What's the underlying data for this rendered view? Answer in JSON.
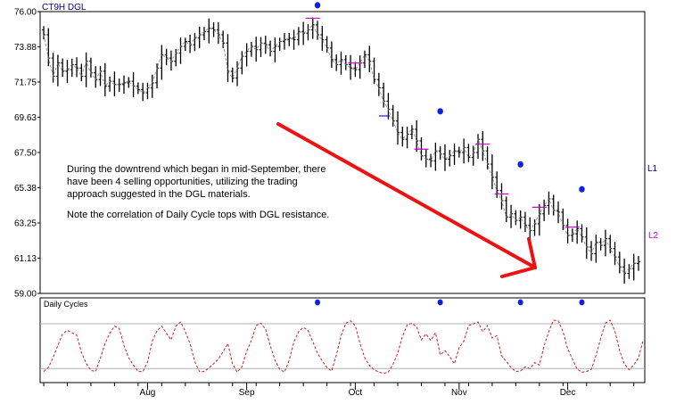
{
  "chart_data": [
    {
      "type": "bar",
      "style": "ohlc",
      "title": "CT9H DGL",
      "ylim": [
        59.0,
        76.0
      ],
      "yticks": [
        "76.00",
        "73.88",
        "71.75",
        "69.63",
        "67.50",
        "65.38",
        "63.25",
        "61.13",
        "59.00"
      ],
      "xlabels": [
        "Aug",
        "Sep",
        "Oct",
        "Nov",
        "Dec"
      ],
      "side_labels": {
        "l1": "L1",
        "l2": "L2"
      },
      "annotation": {
        "paragraph1": "During the downtrend which began in mid-September, there have been 4 selling opportunities, utilizing the trading approach suggested in the DGL materials.",
        "paragraph2": "Note the correlation of Daily Cycle tops with DGL resistance."
      },
      "colors": {
        "bars": "#000000",
        "markers": "#1020e0",
        "resistance": "#cc00cc",
        "arrow": "#ee1111",
        "axis_text": "#000080"
      },
      "series": [
        {
          "values": [
            74.6,
            73.2,
            72.1,
            72.9,
            72.4,
            72.5,
            72.8,
            72.6,
            72.1,
            73.0,
            72.3,
            71.9,
            72.4,
            71.5,
            71.8,
            71.6,
            71.6,
            71.7,
            71.8,
            71.5,
            71.3,
            71.1,
            71.4,
            71.7,
            72.6,
            73.4,
            73.2,
            73.0,
            73.5,
            73.9,
            74.2,
            74.0,
            74.4,
            74.6,
            74.8,
            75.0,
            74.9,
            74.6,
            74.1,
            72.4,
            72.0,
            72.6,
            73.3,
            73.6,
            73.9,
            73.7,
            74.1,
            74.0,
            73.6,
            73.9,
            74.2,
            74.3,
            74.4,
            74.3,
            74.8,
            74.7,
            74.9,
            75.2,
            74.6,
            74.3,
            73.8,
            73.1,
            72.8,
            73.1,
            72.8,
            72.6,
            72.5,
            72.9,
            73.4,
            73.0,
            71.9,
            71.4,
            70.6,
            70.1,
            69.4,
            68.7,
            68.3,
            68.6,
            68.9,
            68.2,
            67.3,
            67.1,
            67.0,
            67.6,
            67.4,
            67.1,
            67.3,
            67.6,
            67.5,
            67.8,
            67.2,
            67.5,
            68.3,
            67.6,
            66.8,
            66.0,
            65.2,
            64.6,
            63.6,
            63.8,
            63.4,
            63.6,
            63.1,
            62.8,
            63.2,
            63.8,
            64.3,
            64.7,
            64.0,
            63.9,
            63.1,
            62.5,
            62.6,
            62.9,
            62.4,
            61.8,
            61.4,
            62.1,
            61.9,
            62.3,
            61.7,
            61.2,
            60.6,
            60.2,
            60.5,
            60.8,
            60.9
          ]
        }
      ],
      "markers_top": [
        75.2,
        68.8,
        65.6,
        64.1
      ],
      "cycle_panel": {
        "label": "Daily Cycles",
        "upper_level": 0.85,
        "lower_level": 0.1,
        "values": [
          0.05,
          0.12,
          0.29,
          0.49,
          0.68,
          0.74,
          0.7,
          0.66,
          0.37,
          0.19,
          0.07,
          0.05,
          0.27,
          0.52,
          0.69,
          0.81,
          0.77,
          0.49,
          0.28,
          0.16,
          0.05,
          0.05,
          0.21,
          0.56,
          0.73,
          0.81,
          0.69,
          0.58,
          0.81,
          0.88,
          0.72,
          0.52,
          0.22,
          0.05,
          0.05,
          0.11,
          0.18,
          0.26,
          0.38,
          0.52,
          0.18,
          0.04,
          0.13,
          0.39,
          0.57,
          0.82,
          0.86,
          0.76,
          0.48,
          0.24,
          0.09,
          0.04,
          0.24,
          0.55,
          0.72,
          0.79,
          0.74,
          0.55,
          0.36,
          0.23,
          0.12,
          0.06,
          0.33,
          0.65,
          0.86,
          0.9,
          0.82,
          0.52,
          0.28,
          0.15,
          0.08,
          0.04,
          0.02,
          0.04,
          0.17,
          0.36,
          0.64,
          0.83,
          0.86,
          0.8,
          0.58,
          0.68,
          0.57,
          0.7,
          0.33,
          0.4,
          0.3,
          0.18,
          0.45,
          0.56,
          0.82,
          0.85,
          0.88,
          0.72,
          0.82,
          0.61,
          0.65,
          0.31,
          0.22,
          0.12,
          0.05,
          0.06,
          0.13,
          0.1,
          0.2,
          0.16,
          0.48,
          0.72,
          0.91,
          0.9,
          0.72,
          0.43,
          0.26,
          0.09,
          0.04,
          0.05,
          0.09,
          0.32,
          0.61,
          0.86,
          0.91,
          0.73,
          0.4,
          0.18,
          0.08,
          0.16,
          0.28,
          0.58
        ]
      }
    }
  ]
}
